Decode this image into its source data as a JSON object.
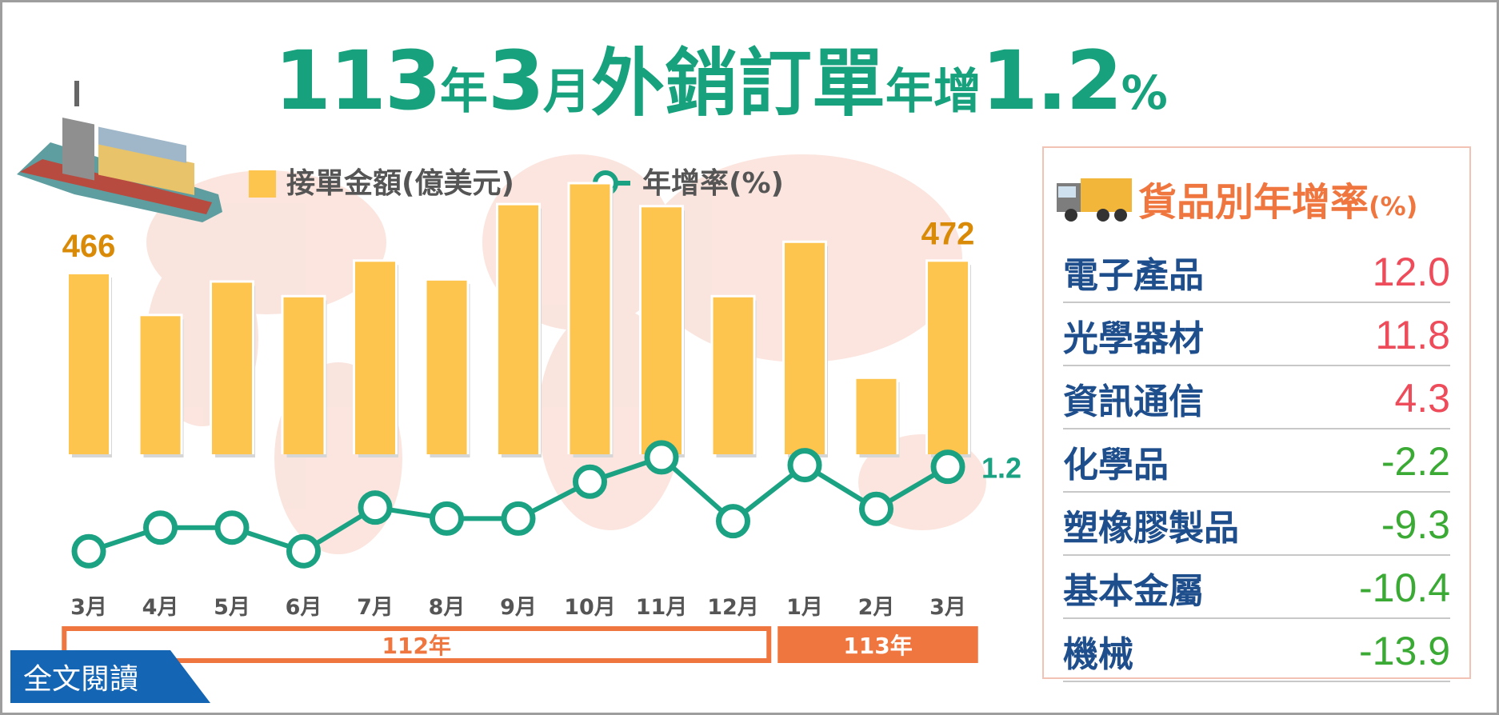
{
  "title": {
    "part1": "113",
    "part2": "年",
    "part3": "3",
    "part4": "月",
    "part5": "外銷訂單",
    "part6": "年增",
    "part7": "1.2",
    "part8": "%"
  },
  "legend": {
    "bar_label": "接單金額(億美元)",
    "line_label": "年增率(%)"
  },
  "chart_data": {
    "type": "bar",
    "categories": [
      "3月",
      "4月",
      "5月",
      "6月",
      "7月",
      "8月",
      "9月",
      "10月",
      "11月",
      "12月",
      "1月",
      "2月",
      "3月"
    ],
    "series": [
      {
        "name": "接單金額(億美元)",
        "kind": "bar",
        "values": [
          466,
          446,
          462,
          455,
          472,
          463,
          499,
          509,
          498,
          455,
          481,
          416,
          472
        ],
        "labels": {
          "0": "466",
          "12": "472"
        }
      },
      {
        "name": "年增率(%)",
        "kind": "line",
        "values": [
          -24.9,
          -17.6,
          -17.6,
          -24.9,
          -11.4,
          -14.8,
          -14.8,
          -3.4,
          4.1,
          -15.6,
          1.7,
          -11.8,
          1.2
        ],
        "labels": {
          "12": "1.2"
        }
      }
    ],
    "year_bands": [
      {
        "label": "112年",
        "from": 0,
        "to": 9
      },
      {
        "label": "113年",
        "from": 10,
        "to": 12
      }
    ],
    "bar_ylim": [
      0,
      520
    ],
    "line_ylim": [
      -32,
      10
    ],
    "colors": {
      "bar": "#fdc54e",
      "line": "#1aa283",
      "bar_label": "#d98a06",
      "line_label": "#1aa283",
      "band": "#f0763f"
    }
  },
  "panel": {
    "title": "貨品別年增率",
    "unit": "(%)",
    "items": [
      {
        "name": "電子產品",
        "value": "12.0",
        "color": "#ee4c5a"
      },
      {
        "name": "光學器材",
        "value": "11.8",
        "color": "#ee4c5a"
      },
      {
        "name": "資訊通信",
        "value": "4.3",
        "color": "#ee4c5a"
      },
      {
        "name": "化學品",
        "value": "-2.2",
        "color": "#3aaa35"
      },
      {
        "name": "塑橡膠製品",
        "value": "-9.3",
        "color": "#3aaa35"
      },
      {
        "name": "基本金屬",
        "value": "-10.4",
        "color": "#3aaa35"
      },
      {
        "name": "機械",
        "value": "-13.9",
        "color": "#3aaa35"
      }
    ]
  },
  "read_more": "全文閱讀",
  "icons": [
    "ship-icon",
    "truck-icon",
    "world-map-background"
  ]
}
